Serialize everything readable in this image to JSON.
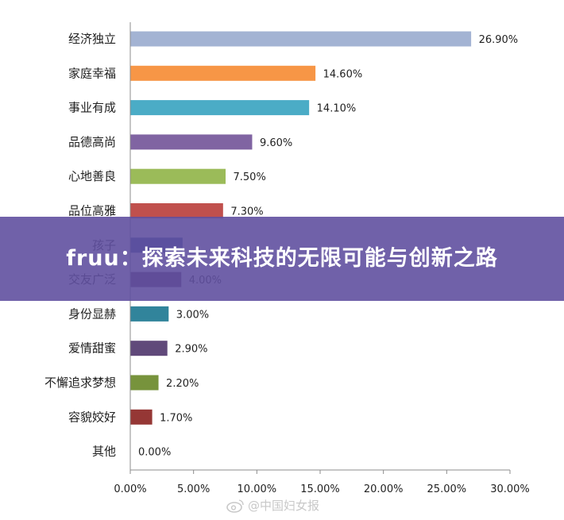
{
  "chart_data": {
    "type": "bar",
    "orientation": "horizontal",
    "categories": [
      "经济独立",
      "家庭幸福",
      "事业有成",
      "品德高尚",
      "心地善良",
      "品位高雅",
      "孩子",
      "交友广泛",
      "身份显赫",
      "爱情甜蜜",
      "不懈追求梦想",
      "容貌姣好",
      "其他"
    ],
    "values": [
      26.9,
      14.6,
      14.1,
      9.6,
      7.5,
      7.3,
      4.1,
      4.0,
      3.0,
      2.9,
      2.2,
      1.7,
      0.0
    ],
    "value_labels": [
      "26.90%",
      "14.60%",
      "14.10%",
      "9.60%",
      "7.50%",
      "7.30%",
      "",
      "4.00%",
      "3.00%",
      "2.90%",
      "2.20%",
      "1.70%",
      "0.00%"
    ],
    "category_labels": [
      "经济独立",
      "家庭幸福",
      "事业有成",
      "品德高尚",
      "心地善良",
      "品位高雅",
      "孩子",
      "交友广泛",
      "身份显赫",
      "爱情甜蜜",
      "不懈追求梦想",
      "容貌姣好",
      "其他"
    ],
    "colors": [
      "#a3b3d3",
      "#f79646",
      "#4bacc6",
      "#8064a2",
      "#9bbb59",
      "#c0504d",
      "#2e5597",
      "#5f3b62",
      "#31849b",
      "#60497a",
      "#77933c",
      "#953735",
      "#f79646"
    ],
    "xlim": [
      0,
      30
    ],
    "xticks": [
      "0.00%",
      "5.00%",
      "10.00%",
      "15.00%",
      "20.00%",
      "25.00%",
      "30.00%"
    ],
    "grid": false,
    "legend": "none"
  },
  "overlay": {
    "title": "fruu：探索未来科技的无限可能与创新之路"
  },
  "watermark": {
    "text": "@中国妇女报",
    "icon": "weibo-icon"
  }
}
